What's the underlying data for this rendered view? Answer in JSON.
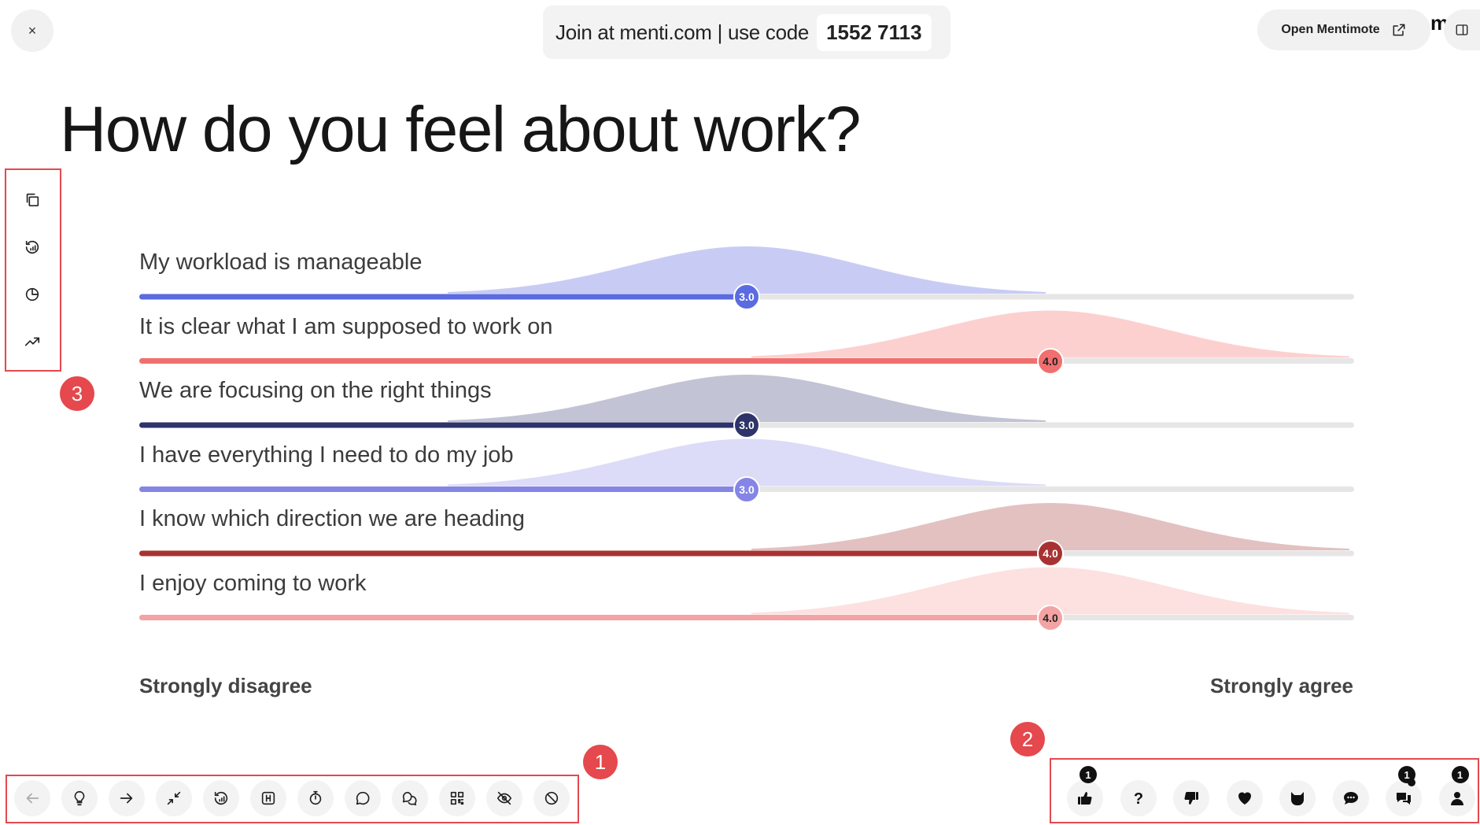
{
  "header": {
    "close_label": "×",
    "join_text": "Join at menti.com | use code",
    "join_code": "1552 7113",
    "open_mentimote": "Open Mentimote",
    "logo_fragment": "m"
  },
  "title": "How do you feel about work?",
  "chart_data": {
    "type": "scale",
    "scale_min_label": "Strongly disagree",
    "scale_max_label": "Strongly agree",
    "min": 1,
    "max": 5,
    "statements": [
      {
        "label": "My workload is manageable",
        "value": 3.0,
        "display": "3.0",
        "color": "#5b6be0",
        "fill": "#c8ccf5"
      },
      {
        "label": "It is clear what I am supposed to work on",
        "value": 4.0,
        "display": "4.0",
        "color": "#f16f6f",
        "fill": "#fdd0d0"
      },
      {
        "label": "We are focusing on the right things",
        "value": 3.0,
        "display": "3.0",
        "color": "#2e3469",
        "fill": "#c2c3d4"
      },
      {
        "label": "I have everything I need to do my job",
        "value": 3.0,
        "display": "3.0",
        "color": "#8585e6",
        "fill": "#dcdcf8"
      },
      {
        "label": "I know which direction we are heading",
        "value": 4.0,
        "display": "4.0",
        "color": "#a83232",
        "fill": "#e3c1c1"
      },
      {
        "label": "I enjoy coming to work",
        "value": 4.0,
        "display": "4.0",
        "color": "#f3a3a3",
        "fill": "#fde0e0"
      }
    ]
  },
  "left_toolbar": [
    {
      "name": "copy-icon",
      "icon": "copy"
    },
    {
      "name": "reset-results-icon",
      "icon": "history"
    },
    {
      "name": "pie-chart-icon",
      "icon": "pie-chart"
    },
    {
      "name": "trend-icon",
      "icon": "trending-up"
    }
  ],
  "bottom_toolbar": [
    {
      "name": "back-arrow-icon",
      "icon": "arrow-left"
    },
    {
      "name": "lightbulb-icon",
      "icon": "lightbulb"
    },
    {
      "name": "forward-arrow-icon",
      "icon": "arrow-right"
    },
    {
      "name": "minimize-icon",
      "icon": "minimize"
    },
    {
      "name": "reset-icon",
      "icon": "history"
    },
    {
      "name": "hotkeys-icon",
      "icon": "h-key"
    },
    {
      "name": "timer-icon",
      "icon": "stopwatch"
    },
    {
      "name": "comment-icon",
      "icon": "speech-bubble"
    },
    {
      "name": "qna-icon",
      "icon": "chat-bubbles"
    },
    {
      "name": "qr-code-icon",
      "icon": "qr-code"
    },
    {
      "name": "hide-results-icon",
      "icon": "eye-off"
    },
    {
      "name": "block-icon",
      "icon": "ban"
    }
  ],
  "reactions": [
    {
      "name": "thumbs-up-icon",
      "icon": "thumbs-up",
      "badge": "1"
    },
    {
      "name": "question-icon",
      "icon": "question-mark",
      "badge": ""
    },
    {
      "name": "thumbs-down-icon",
      "icon": "thumbs-down",
      "badge": ""
    },
    {
      "name": "heart-icon",
      "icon": "heart",
      "badge": ""
    },
    {
      "name": "cat-icon",
      "icon": "cat",
      "badge": ""
    },
    {
      "name": "chat-icon",
      "icon": "chat",
      "badge": ""
    },
    {
      "name": "messages-icon",
      "icon": "messages",
      "badge": "1"
    },
    {
      "name": "participants-icon",
      "icon": "person",
      "badge": "1"
    }
  ],
  "callouts": [
    "1",
    "2",
    "3"
  ]
}
